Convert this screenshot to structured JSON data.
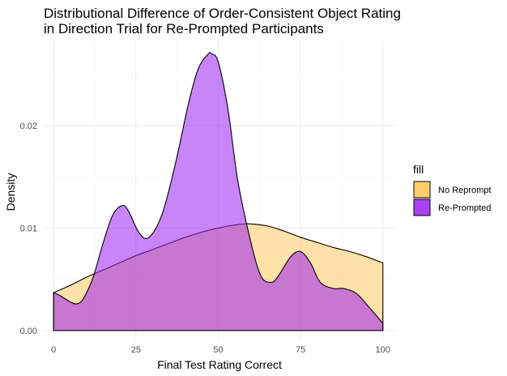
{
  "chart_data": {
    "type": "area",
    "title": [
      "Distributional Difference of Order-Consistent Object Rating",
      "in Direction Trial for Re-Prompted Participants"
    ],
    "xlabel": "Final Test Rating Correct",
    "ylabel": "Density",
    "xlim": [
      -3,
      104
    ],
    "ylim": [
      -0.0008,
      0.0283
    ],
    "x_ticks": [
      0,
      25,
      50,
      75,
      100
    ],
    "x_tick_labels": [
      "0",
      "25",
      "50",
      "75",
      "100"
    ],
    "y_ticks": [
      0,
      0.01,
      0.02
    ],
    "y_tick_labels": [
      "0.00",
      "0.01",
      "0.02"
    ],
    "grid": true,
    "legend": {
      "title": "fill",
      "position": "right"
    },
    "series": [
      {
        "name": "No Reprompt",
        "fill": "#fdbd3e",
        "fill_opacity": 0.45,
        "x": [
          0,
          5,
          10,
          15,
          20,
          25,
          30,
          35,
          40,
          45,
          50,
          55,
          58,
          60,
          65,
          70,
          75,
          80,
          85,
          90,
          95,
          100
        ],
        "values": [
          0.0037,
          0.0044,
          0.0052,
          0.0059,
          0.0066,
          0.0073,
          0.0079,
          0.0085,
          0.0091,
          0.0096,
          0.01,
          0.0103,
          0.0104,
          0.0104,
          0.0102,
          0.0097,
          0.0091,
          0.0086,
          0.0081,
          0.0077,
          0.0072,
          0.0066
        ]
      },
      {
        "name": "Re-Prompted",
        "fill": "#9b21f0",
        "fill_opacity": 0.55,
        "x": [
          0,
          2,
          5,
          7,
          9,
          12,
          15,
          18,
          21,
          23,
          26,
          29,
          33,
          37,
          41,
          44,
          47,
          48,
          50,
          53,
          56,
          60,
          63,
          66,
          68,
          72,
          75,
          78,
          81,
          85,
          88,
          92,
          96,
          100
        ],
        "values": [
          0.0037,
          0.0034,
          0.0028,
          0.0026,
          0.0031,
          0.0052,
          0.0085,
          0.0113,
          0.0122,
          0.0115,
          0.0095,
          0.0091,
          0.0114,
          0.0163,
          0.0222,
          0.0256,
          0.027,
          0.027,
          0.0262,
          0.0215,
          0.0145,
          0.0085,
          0.0053,
          0.0047,
          0.0052,
          0.0072,
          0.0077,
          0.0066,
          0.0047,
          0.0041,
          0.0041,
          0.0036,
          0.0022,
          0.0007
        ]
      }
    ]
  }
}
